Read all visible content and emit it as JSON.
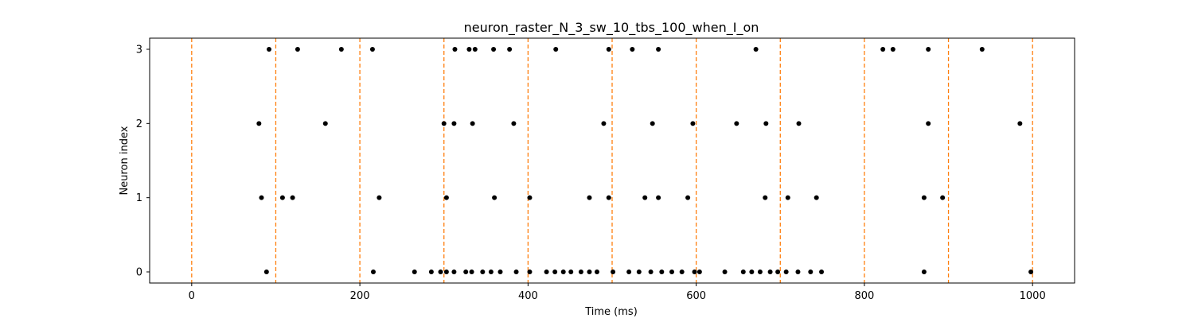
{
  "chart_data": {
    "type": "scatter",
    "title": "neuron_raster_N_3_sw_10_tbs_100_when_I_on",
    "xlabel": "Time (ms)",
    "ylabel": "Neuron index",
    "xlim": [
      -50,
      1050
    ],
    "ylim": [
      -0.15,
      3.15
    ],
    "xticks": [
      0,
      200,
      400,
      600,
      800,
      1000
    ],
    "yticks": [
      0,
      1,
      2,
      3
    ],
    "xtick_labels": [
      "0",
      "200",
      "400",
      "600",
      "800",
      "1000"
    ],
    "ytick_labels": [
      "0",
      "1",
      "2",
      "3"
    ],
    "grid": false,
    "marker_color": "#000000",
    "vline_color": "#ff7f0e",
    "vlines": [
      0,
      100,
      200,
      300,
      400,
      500,
      600,
      700,
      800,
      900,
      1000
    ],
    "series": [
      {
        "neuron": 0,
        "x": [
          89,
          216,
          265,
          285,
          296,
          303,
          312,
          326,
          333,
          346,
          356,
          367,
          386,
          402,
          422,
          432,
          442,
          451,
          463,
          473,
          482,
          501,
          520,
          532,
          546,
          559,
          571,
          583,
          598,
          604,
          634,
          656,
          666,
          676,
          688,
          697,
          707,
          721,
          736,
          749,
          871,
          998
        ]
      },
      {
        "neuron": 1,
        "x": [
          83,
          108,
          120,
          223,
          303,
          360,
          402,
          473,
          496,
          539,
          555,
          590,
          682,
          709,
          743,
          871,
          893
        ]
      },
      {
        "neuron": 2,
        "x": [
          80,
          159,
          300,
          312,
          334,
          383,
          490,
          548,
          596,
          648,
          683,
          722,
          876,
          985
        ]
      },
      {
        "neuron": 3,
        "x": [
          92,
          126,
          178,
          215,
          313,
          330,
          337,
          359,
          378,
          433,
          496,
          524,
          555,
          671,
          822,
          834,
          876,
          940
        ]
      }
    ]
  }
}
